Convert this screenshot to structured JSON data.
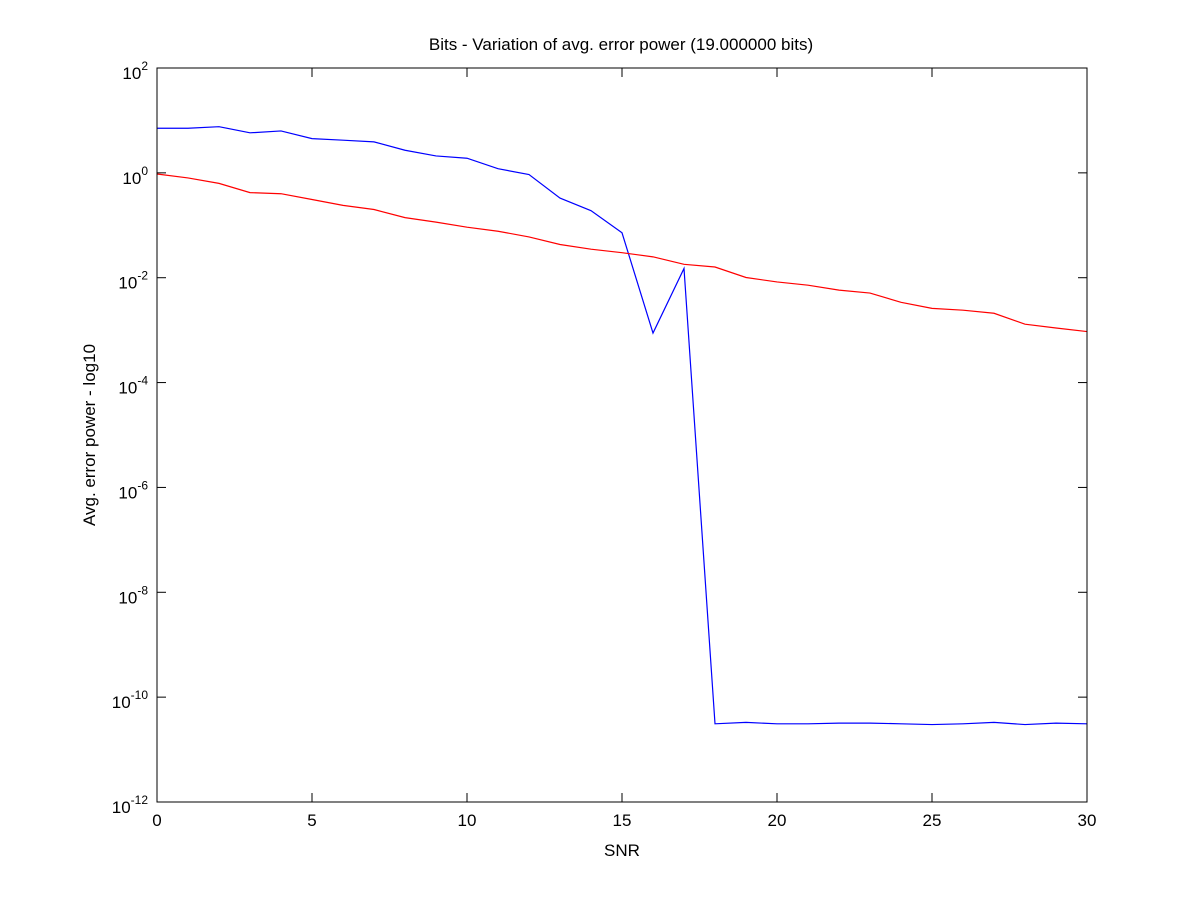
{
  "chart_data": {
    "type": "line",
    "title": "Bits - Variation of avg. error power (19.000000 bits)",
    "xlabel": "SNR",
    "ylabel": "Avg. error power - log10",
    "xlim": [
      0,
      30
    ],
    "ylim_log10": [
      -12,
      2
    ],
    "yscale": "log",
    "grid": false,
    "x_ticks": [
      "0",
      "5",
      "10",
      "15",
      "20",
      "25",
      "30"
    ],
    "y_ticks": [
      {
        "base": "10",
        "exp": "2"
      },
      {
        "base": "10",
        "exp": "0"
      },
      {
        "base": "10",
        "exp": "-2"
      },
      {
        "base": "10",
        "exp": "-4"
      },
      {
        "base": "10",
        "exp": "-6"
      },
      {
        "base": "10",
        "exp": "-8"
      },
      {
        "base": "10",
        "exp": "-10"
      },
      {
        "base": "10",
        "exp": "-12"
      }
    ],
    "x": [
      0,
      1,
      2,
      3,
      4,
      5,
      6,
      7,
      8,
      9,
      10,
      11,
      12,
      13,
      14,
      15,
      16,
      17,
      18,
      19,
      20,
      21,
      22,
      23,
      24,
      25,
      26,
      27,
      28,
      29,
      30
    ],
    "series": [
      {
        "color": "#0000ff",
        "values": [
          7.1,
          7.1,
          7.6,
          5.8,
          6.3,
          4.5,
          4.2,
          3.9,
          2.7,
          2.1,
          1.9,
          1.2,
          0.93,
          0.33,
          0.19,
          0.072,
          0.00088,
          0.015,
          3.1e-11,
          3.3e-11,
          3.1e-11,
          3.1e-11,
          3.2e-11,
          3.2e-11,
          3.1e-11,
          3e-11,
          3.1e-11,
          3.3e-11,
          3e-11,
          3.2e-11,
          3.1e-11
        ]
      },
      {
        "color": "#ff0000",
        "values": [
          0.95,
          0.8,
          0.63,
          0.42,
          0.4,
          0.31,
          0.24,
          0.2,
          0.14,
          0.115,
          0.092,
          0.077,
          0.06,
          0.043,
          0.035,
          0.03,
          0.025,
          0.018,
          0.016,
          0.0101,
          0.0083,
          0.0072,
          0.0058,
          0.0051,
          0.0034,
          0.0026,
          0.0024,
          0.0021,
          0.0013,
          0.0011,
          0.00094
        ]
      }
    ]
  }
}
